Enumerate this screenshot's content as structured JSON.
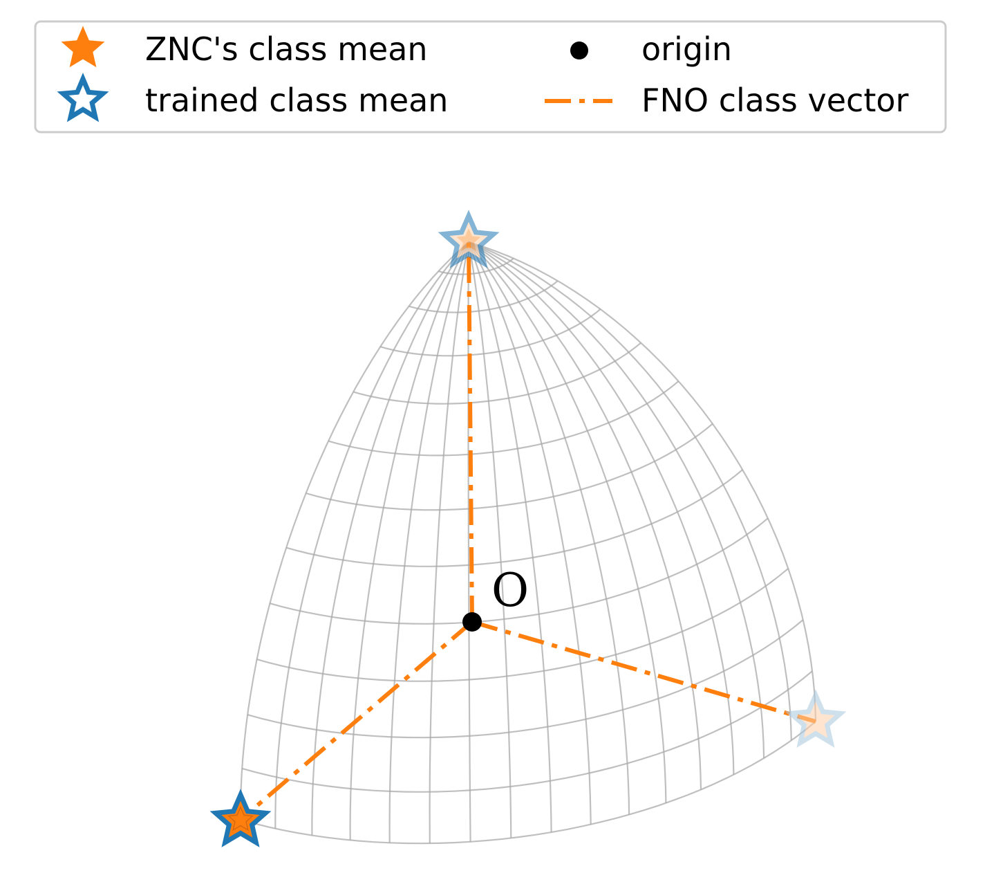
{
  "legend": {
    "items": [
      {
        "label": "ZNC's class mean",
        "marker": "filled-star",
        "color": "#ff7f0e"
      },
      {
        "label": "trained class mean",
        "marker": "hollow-star",
        "color": "#1f77b4"
      },
      {
        "label": "origin",
        "marker": "dot",
        "color": "#000000"
      },
      {
        "label": "FNO class vector",
        "marker": "dash-dot-line",
        "color": "#ff7f0e"
      }
    ]
  },
  "diagram": {
    "origin_label": "O",
    "grid_color": "#aaaaaa",
    "vector_color": "#ff7f0e",
    "star_edge_color": "#1f77b4",
    "class_means": [
      {
        "name": "top",
        "faded": true
      },
      {
        "name": "right",
        "faded": true
      },
      {
        "name": "left",
        "faded": false
      }
    ]
  }
}
